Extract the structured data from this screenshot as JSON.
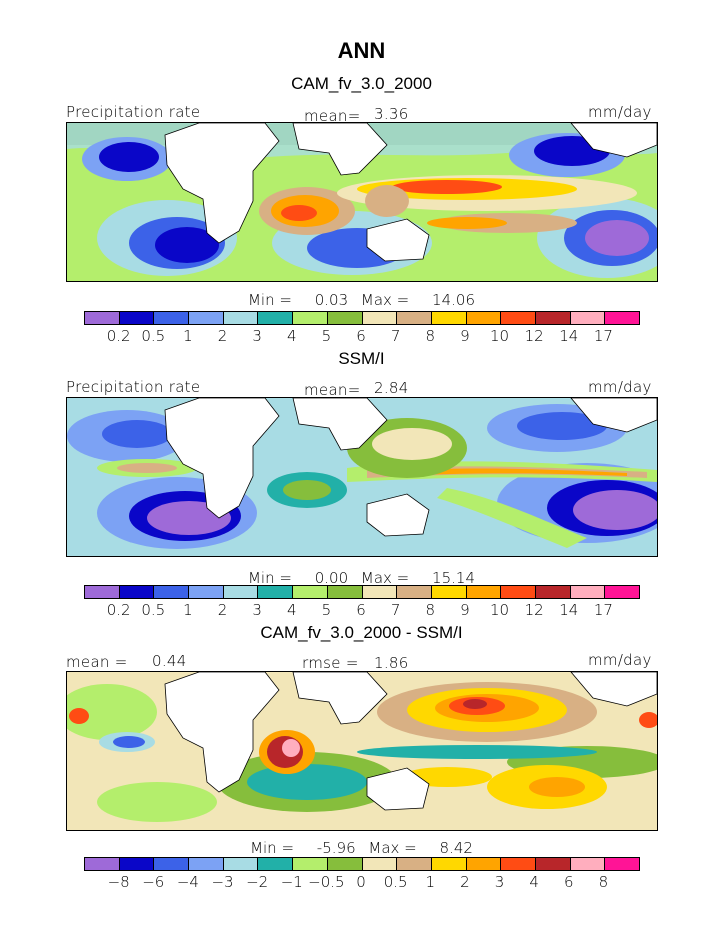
{
  "figure": {
    "title": "ANN"
  },
  "palette": {
    "colors": [
      "#9e6ad8",
      "#0a06c8",
      "#3c62e8",
      "#7ca2f4",
      "#a8dce4",
      "#22b0a8",
      "#b4ee6c",
      "#86be3c",
      "#f2e6b8",
      "#d8b084",
      "#ffd800",
      "#ffa400",
      "#ff4c14",
      "#b8262a",
      "#ffaebe",
      "#ff1496"
    ]
  },
  "chart_data": [
    {
      "type": "heatmap",
      "title": "CAM_fv_3.0_2000",
      "left_label": "Precipitation rate",
      "stat_label": "mean=",
      "stat_value": "3.36",
      "units": "mm/day",
      "min_label": "Min =",
      "min": "0.03",
      "max_label": "Max =",
      "max": "14.06",
      "contour_levels": [
        "0.2",
        "0.5",
        "1",
        "2",
        "3",
        "4",
        "5",
        "6",
        "7",
        "8",
        "9",
        "10",
        "12",
        "14",
        "17"
      ]
    },
    {
      "type": "heatmap",
      "title": "SSM/I",
      "left_label": "Precipitation rate",
      "stat_label": "mean=",
      "stat_value": "2.84",
      "units": "mm/day",
      "min_label": "Min =",
      "min": "0.00",
      "max_label": "Max =",
      "max": "15.14",
      "contour_levels": [
        "0.2",
        "0.5",
        "1",
        "2",
        "3",
        "4",
        "5",
        "6",
        "7",
        "8",
        "9",
        "10",
        "12",
        "14",
        "17"
      ]
    },
    {
      "type": "heatmap",
      "title": "CAM_fv_3.0_2000 - SSM/I",
      "left_label": "mean =",
      "left_value": "0.44",
      "stat_label": "rmse =",
      "stat_value": "1.86",
      "units": "mm/day",
      "min_label": "Min =",
      "min": "-5.96",
      "max_label": "Max =",
      "max": "8.42",
      "contour_levels": [
        "−8",
        "−6",
        "−4",
        "−3",
        "−2",
        "−1",
        "−0.5",
        "0",
        "0.5",
        "1",
        "2",
        "3",
        "4",
        "6",
        "8"
      ]
    }
  ]
}
